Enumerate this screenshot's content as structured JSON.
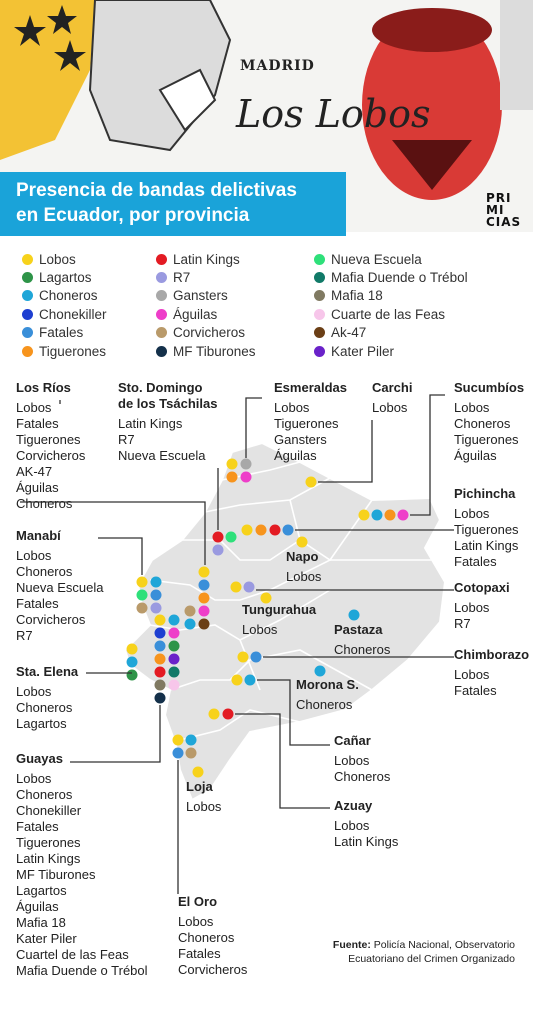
{
  "header": {
    "title_line1": "Presencia de bandas delictivas",
    "title_line2": "en Ecuador, por provincia",
    "logo": [
      "PRI",
      "MI",
      "CIAS"
    ],
    "art_text_1": "MADRID",
    "art_text_2": "Los Lobos"
  },
  "colors": {
    "Lobos": "#f7d21b",
    "Lagartos": "#2e9448",
    "Choneros": "#1fa6d8",
    "Chonekiller": "#1e3fd1",
    "Fatales": "#3a8fd9",
    "Tiguerones": "#f7941d",
    "Latin Kings": "#e31b23",
    "R7": "#9a9ae0",
    "Gansters": "#a8a8a8",
    "Águilas": "#ee3ec9",
    "Corvicheros": "#b99a6a",
    "MF Tiburones": "#14304a",
    "Nueva Escuela": "#2ee07a",
    "Mafia Duende o Trébol": "#117a68",
    "Mafia 18": "#807a62",
    "Cuarte de las Feas": "#f7c6ea",
    "Ak-47": "#6b3f16",
    "Kater Piler": "#6a22c9"
  },
  "legend": [
    [
      "Lobos",
      "Lagartos",
      "Choneros",
      "Chonekiller",
      "Fatales",
      "Tiguerones"
    ],
    [
      "Latin Kings",
      "R7",
      "Gansters",
      "Águilas",
      "Corvicheros",
      "MF Tiburones"
    ],
    [
      "Nueva Escuela",
      "Mafia Duende o Trébol",
      "Mafia 18",
      "Cuarte de las Feas",
      "Ak-47",
      "Kater Piler"
    ]
  ],
  "provinces": {
    "los_rios": {
      "name": "Los Ríos",
      "gangs": [
        "Lobos",
        "Fatales",
        "Tiguerones",
        "Corvicheros",
        "AK-47",
        "Águilas",
        "Choneros"
      ]
    },
    "santo_domingo": {
      "name": "Sto. Domingo de los Tsáchilas",
      "gangs": [
        "Latin Kings",
        "R7",
        "Nueva Escuela"
      ]
    },
    "esmeraldas": {
      "name": "Esmeraldas",
      "gangs": [
        "Lobos",
        "Tiguerones",
        "Gansters",
        "Águilas"
      ]
    },
    "carchi": {
      "name": "Carchi",
      "gangs": [
        "Lobos"
      ]
    },
    "sucumbios": {
      "name": "Sucumbíos",
      "gangs": [
        "Lobos",
        "Choneros",
        "Tiguerones",
        "Águilas"
      ]
    },
    "pichincha": {
      "name": "Pichincha",
      "gangs": [
        "Lobos",
        "Tiguerones",
        "Latin Kings",
        "Fatales"
      ]
    },
    "napo": {
      "name": "Napo",
      "gangs": [
        "Lobos"
      ]
    },
    "cotopaxi": {
      "name": "Cotopaxi",
      "gangs": [
        "Lobos",
        "R7"
      ]
    },
    "tungurahua": {
      "name": "Tungurahua",
      "gangs": [
        "Lobos"
      ]
    },
    "pastaza": {
      "name": "Pastaza",
      "gangs": [
        "Choneros"
      ]
    },
    "chimborazo": {
      "name": "Chimborazo",
      "gangs": [
        "Lobos",
        "Fatales"
      ]
    },
    "morona": {
      "name": "Morona S.",
      "gangs": [
        "Choneros"
      ]
    },
    "manabi": {
      "name": "Manabí",
      "gangs": [
        "Lobos",
        "Choneros",
        "Nueva Escuela",
        "Fatales",
        "Corvicheros",
        "R7"
      ]
    },
    "santa_elena": {
      "name": "Sta. Elena",
      "gangs": [
        "Lobos",
        "Choneros",
        "Lagartos"
      ]
    },
    "guayas": {
      "name": "Guayas",
      "gangs": [
        "Lobos",
        "Choneros",
        "Chonekiller",
        "Fatales",
        "Tiguerones",
        "Latin Kings",
        "MF Tiburones",
        "Lagartos",
        "Águilas",
        "Mafia 18",
        "Kater Piler",
        "Cuartel de las Feas",
        "Mafia Duende o Trébol"
      ]
    },
    "canar": {
      "name": "Cañar",
      "gangs": [
        "Lobos",
        "Choneros"
      ]
    },
    "azuay": {
      "name": "Azuay",
      "gangs": [
        "Lobos",
        "Latin Kings"
      ]
    },
    "loja": {
      "name": "Loja",
      "gangs": [
        "Lobos"
      ]
    },
    "el_oro": {
      "name": "El Oro",
      "gangs": [
        "Lobos",
        "Choneros",
        "Fatales",
        "Corvicheros"
      ]
    }
  },
  "source": {
    "label": "Fuente:",
    "text": "Policía Nacional, Observatorio Ecuatoriano del Crimen Organizado"
  }
}
